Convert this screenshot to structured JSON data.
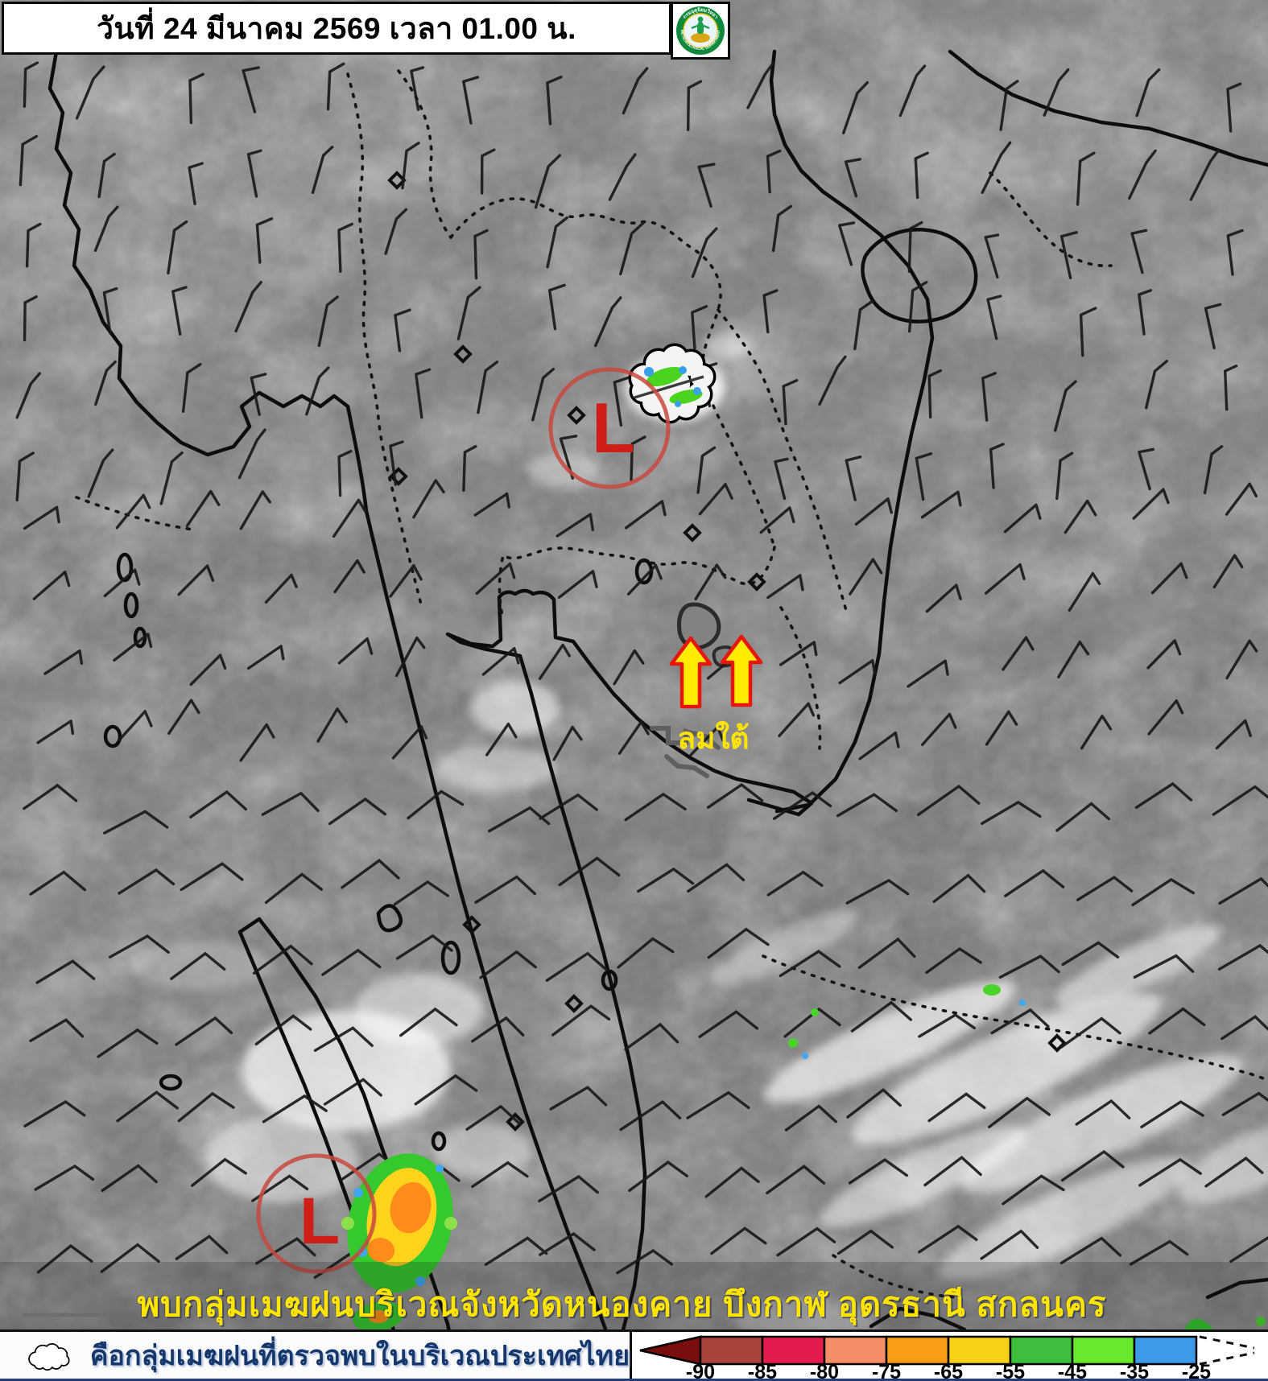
{
  "header": {
    "title": "วันที่ 24 มีนาคม 2569 เวลา 01.00 น."
  },
  "logo": {
    "top_text": "กรมอุตุนิยมวิทยา",
    "bottom_text": "METEOROLOGICAL DEPARTMENT"
  },
  "annotations": {
    "low_pressure_1": {
      "label": "L"
    },
    "low_pressure_2": {
      "label": "L"
    },
    "wind_label": "ลมใต้",
    "caption": "พบกลุ่มเมฆฝนบริเวณจังหวัดหนองคาย บึงกาฬ อุดรธานี สกลนคร"
  },
  "legend": {
    "cloud_note": "คือกลุ่มเมฆฝนที่ตรวจพบในบริเวณประเทศไทย",
    "scale": {
      "ticks": [
        "-90",
        "-85",
        "-80",
        "-75",
        "-65",
        "-55",
        "-45",
        "-35",
        "-25"
      ],
      "colors": [
        "#a8423a",
        "#e41c4e",
        "#f58e66",
        "#f99c16",
        "#f7d117",
        "#3dbf3d",
        "#6ae82b",
        "#3d9ae8"
      ],
      "arrow_color": "#7a0d0d"
    }
  },
  "colors": {
    "low_marker_red": "#cf1d17",
    "low_circle_red": "#c8483e",
    "wind_arrow_fill": "#ffec00",
    "wind_arrow_stroke": "#e8150b",
    "caption_yellow": "#ffe400",
    "legend_text_navy": "#16376b"
  }
}
